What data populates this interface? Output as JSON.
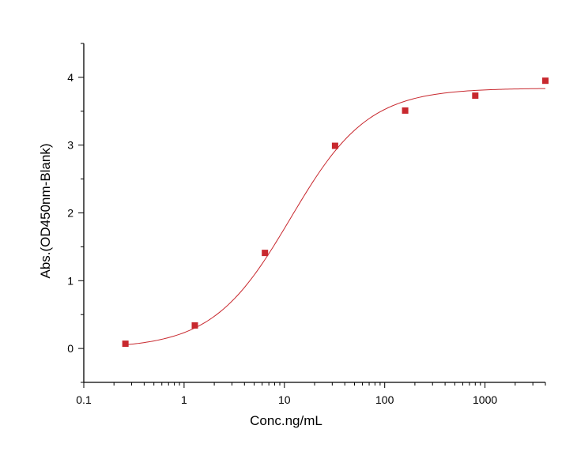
{
  "chart_data": {
    "type": "scatter",
    "title": "",
    "xlabel": "Conc.ng/mL",
    "ylabel": "Abs.(OD450nm-Blank)",
    "x_scale": "log",
    "xlim": [
      0.1,
      4000
    ],
    "ylim": [
      -0.5,
      4.5
    ],
    "x_ticks": [
      0.1,
      1,
      10,
      100,
      1000
    ],
    "x_tick_labels": [
      "0.1",
      "1",
      "10",
      "100",
      "1000"
    ],
    "y_ticks": [
      0,
      1,
      2,
      3,
      4
    ],
    "y_tick_labels": [
      "0",
      "1",
      "2",
      "3",
      "4"
    ],
    "grid": false,
    "legend": "none",
    "series": [
      {
        "kind": "points",
        "marker": "square",
        "color": "#c8282e",
        "x": [
          0.26,
          1.28,
          6.4,
          32,
          160,
          800,
          4000
        ],
        "y": [
          0.07,
          0.34,
          1.41,
          2.99,
          3.51,
          3.73,
          3.95
        ]
      },
      {
        "kind": "fit-curve",
        "color": "#c8282e",
        "model": "4PL",
        "params": {
          "bottom": 0.0,
          "top": 3.84,
          "ec50": 11.5,
          "hill": 1.12
        }
      }
    ]
  }
}
